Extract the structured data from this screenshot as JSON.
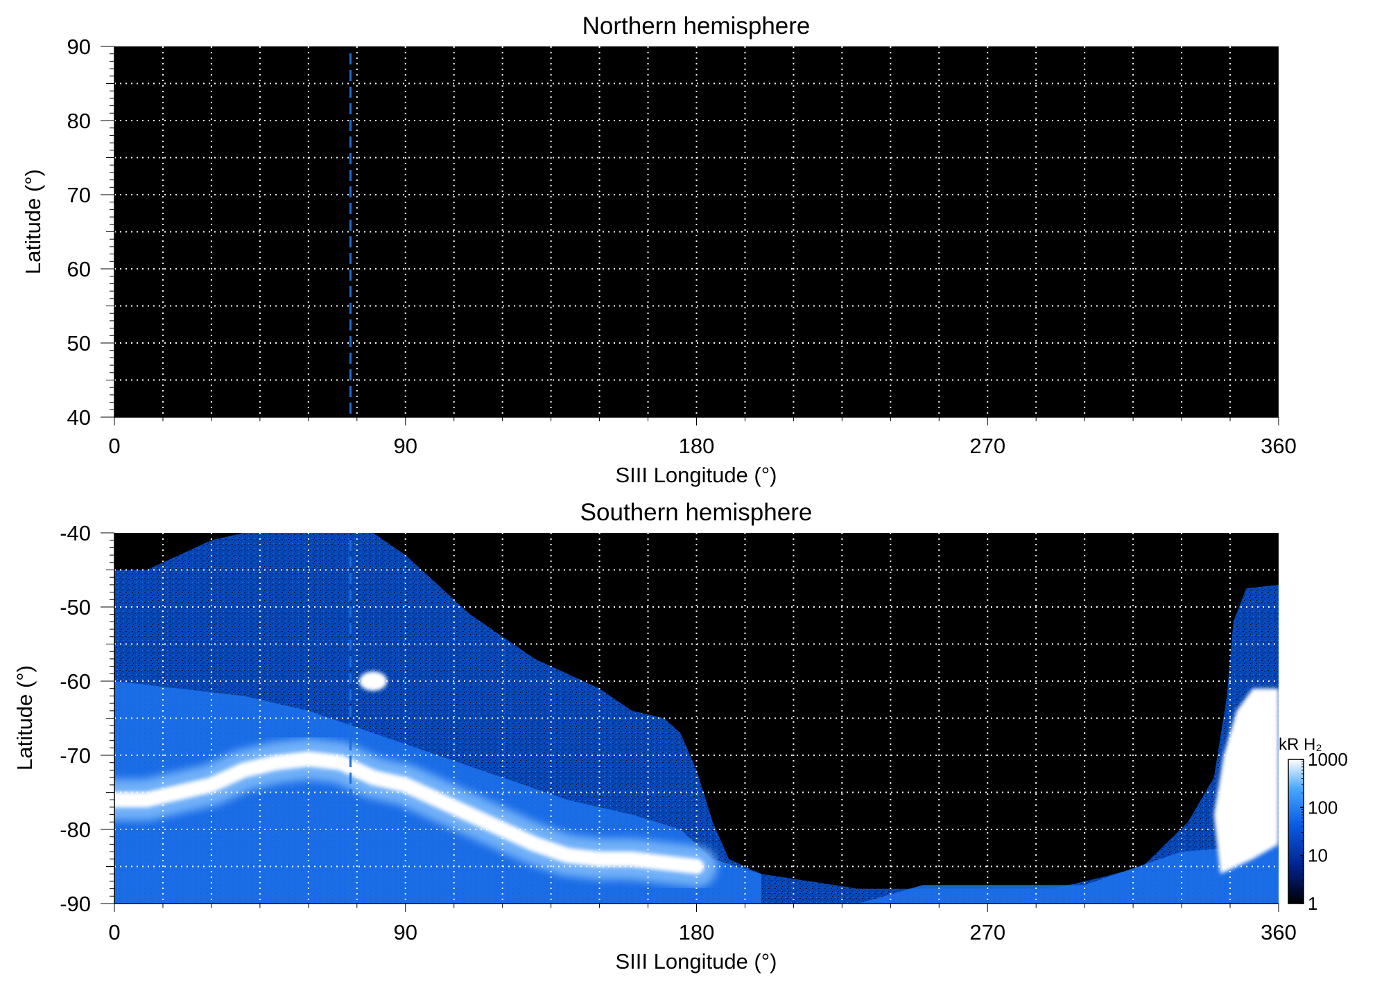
{
  "colors": {
    "background": "#000000",
    "grid": "#ffffff",
    "marker_line": "#1e6fd9",
    "emission_low": "#000000",
    "emission_mid": "#0050e0",
    "emission_high": "#ffffff"
  },
  "chart_data": [
    {
      "type": "heatmap",
      "title": "Northern hemisphere",
      "xlabel": "SIII Longitude (°)",
      "ylabel": "Latitude (°)",
      "xlim": [
        0,
        360
      ],
      "ylim": [
        40,
        90
      ],
      "xticks": [
        0,
        90,
        180,
        270,
        360
      ],
      "yticks": [
        40,
        50,
        60,
        70,
        80,
        90
      ],
      "xtick_labels": [
        "0",
        "90",
        "180",
        "270",
        "360"
      ],
      "ytick_labels": [
        "40",
        "50",
        "60",
        "70",
        "80",
        "90"
      ],
      "grid": true,
      "grid_style": "dotted",
      "grid_x_step": 15,
      "grid_y_step": 5,
      "marker_longitude": 73,
      "marker_style": "dashed",
      "emission": "none"
    },
    {
      "type": "heatmap",
      "title": "Southern hemisphere",
      "xlabel": "SIII Longitude (°)",
      "ylabel": "Latitude (°)",
      "xlim": [
        0,
        360
      ],
      "ylim": [
        -90,
        -40
      ],
      "xticks": [
        0,
        90,
        180,
        270,
        360
      ],
      "yticks": [
        -40,
        -50,
        -60,
        -70,
        -80,
        -90
      ],
      "xtick_labels": [
        "0",
        "90",
        "180",
        "270",
        "360"
      ],
      "ytick_labels": [
        "-40",
        "-50",
        "-60",
        "-70",
        "-80",
        "-90"
      ],
      "grid": true,
      "grid_style": "dotted",
      "grid_x_step": 15,
      "grid_y_step": 5,
      "marker_longitude": 73,
      "marker_style": "dashed",
      "coverage_boundary": [
        [
          0,
          -45
        ],
        [
          10,
          -45
        ],
        [
          20,
          -43
        ],
        [
          30,
          -41
        ],
        [
          40,
          -40
        ],
        [
          50,
          -40
        ],
        [
          60,
          -40
        ],
        [
          70,
          -40
        ],
        [
          80,
          -40
        ],
        [
          90,
          -43
        ],
        [
          100,
          -47
        ],
        [
          110,
          -51
        ],
        [
          120,
          -54
        ],
        [
          130,
          -57
        ],
        [
          140,
          -59
        ],
        [
          150,
          -61
        ],
        [
          160,
          -64
        ],
        [
          170,
          -65
        ],
        [
          175,
          -67
        ],
        [
          180,
          -72
        ],
        [
          185,
          -79
        ],
        [
          190,
          -84
        ],
        [
          200,
          -86
        ],
        [
          215,
          -87
        ],
        [
          230,
          -88
        ],
        [
          245,
          -88
        ],
        [
          260,
          -88
        ],
        [
          275,
          -88
        ],
        [
          290,
          -88
        ],
        [
          305,
          -86.5
        ],
        [
          318,
          -85
        ],
        [
          325,
          -82
        ],
        [
          332,
          -79
        ],
        [
          340,
          -73
        ],
        [
          344,
          -62
        ],
        [
          346,
          -52
        ],
        [
          350,
          -47.5
        ],
        [
          360,
          -47
        ]
      ],
      "auroral_oval": [
        [
          0,
          -76
        ],
        [
          10,
          -76
        ],
        [
          20,
          -75
        ],
        [
          30,
          -74
        ],
        [
          40,
          -72
        ],
        [
          50,
          -71
        ],
        [
          60,
          -70.5
        ],
        [
          70,
          -71
        ],
        [
          80,
          -73
        ],
        [
          90,
          -74
        ],
        [
          100,
          -76
        ],
        [
          110,
          -78
        ],
        [
          120,
          -80
        ],
        [
          130,
          -82
        ],
        [
          140,
          -83.5
        ],
        [
          150,
          -84
        ],
        [
          160,
          -84
        ],
        [
          170,
          -84.5
        ],
        [
          180,
          -85
        ]
      ],
      "bright_spot": [
        80,
        -60
      ],
      "colorbar": {
        "label": "kR H₂",
        "scale": "log",
        "range": [
          1,
          1000
        ],
        "ticks": [
          "1",
          "10",
          "100",
          "1000"
        ]
      }
    }
  ]
}
